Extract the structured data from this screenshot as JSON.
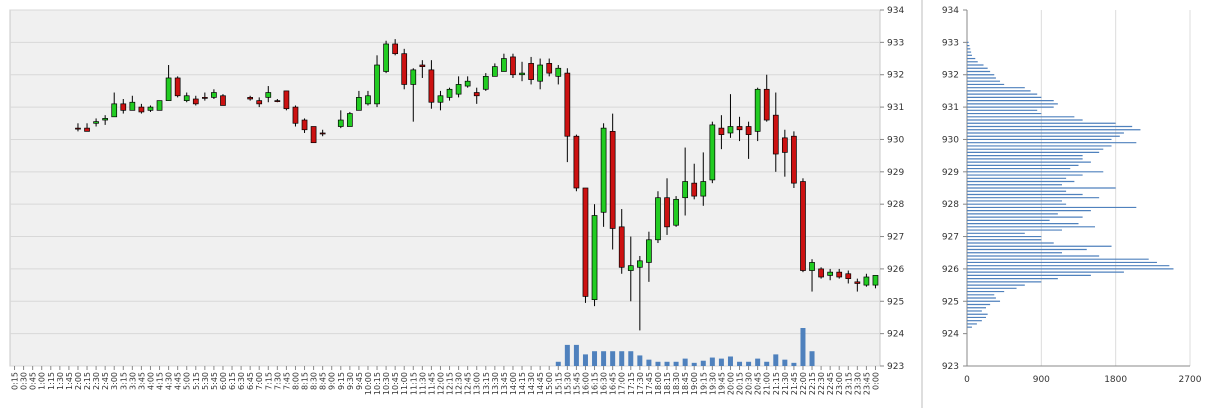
{
  "chart_data": [
    {
      "type": "candlestick",
      "title": "",
      "ylim": [
        923,
        934
      ],
      "y_ticks": [
        "923",
        "924",
        "925",
        "926",
        "927",
        "928",
        "929",
        "930",
        "931",
        "932",
        "933",
        "934"
      ],
      "grid": true,
      "x_labels": [
        "0:15",
        "0:30",
        "0:45",
        "1:00",
        "1:15",
        "1:30",
        "1:45",
        "2:00",
        "2:15",
        "2:30",
        "2:45",
        "3:00",
        "3:15",
        "3:30",
        "3:45",
        "4:00",
        "4:15",
        "4:30",
        "4:45",
        "5:00",
        "5:15",
        "5:30",
        "5:45",
        "6:00",
        "6:15",
        "6:30",
        "6:45",
        "7:00",
        "7:15",
        "7:30",
        "7:45",
        "8:00",
        "8:15",
        "8:30",
        "8:45",
        "9:00",
        "9:15",
        "9:30",
        "9:45",
        "10:00",
        "10:15",
        "10:30",
        "10:45",
        "11:00",
        "11:15",
        "11:30",
        "11:45",
        "12:00",
        "12:15",
        "12:30",
        "12:45",
        "13:00",
        "13:15",
        "13:30",
        "13:45",
        "14:00",
        "14:15",
        "14:30",
        "14:45",
        "15:00",
        "15:15",
        "15:30",
        "15:45",
        "16:00",
        "16:15",
        "16:30",
        "16:45",
        "17:00",
        "17:15",
        "17:30",
        "17:45",
        "18:00",
        "18:15",
        "18:30",
        "18:45",
        "19:00",
        "19:15",
        "19:30",
        "19:45",
        "20:00",
        "20:15",
        "20:30",
        "20:45",
        "21:00",
        "21:15",
        "21:30",
        "21:45",
        "22:00",
        "22:15",
        "22:30",
        "22:45",
        "23:00",
        "23:15",
        "23:30",
        "23:45",
        "0:00"
      ],
      "candles": [
        {
          "t": "2:00",
          "o": 930.35,
          "h": 930.5,
          "l": 930.25,
          "c": 930.35
        },
        {
          "t": "2:15",
          "o": 930.35,
          "h": 930.5,
          "l": 930.25,
          "c": 930.25
        },
        {
          "t": "2:30",
          "o": 930.5,
          "h": 930.65,
          "l": 930.4,
          "c": 930.55
        },
        {
          "t": "2:45",
          "o": 930.6,
          "h": 930.75,
          "l": 930.45,
          "c": 930.65
        },
        {
          "t": "3:00",
          "o": 930.7,
          "h": 931.45,
          "l": 930.7,
          "c": 931.1
        },
        {
          "t": "3:15",
          "o": 931.1,
          "h": 931.25,
          "l": 930.8,
          "c": 930.9
        },
        {
          "t": "3:30",
          "o": 930.9,
          "h": 931.35,
          "l": 930.9,
          "c": 931.15
        },
        {
          "t": "3:45",
          "o": 931.0,
          "h": 931.1,
          "l": 930.8,
          "c": 930.85
        },
        {
          "t": "4:00",
          "o": 930.9,
          "h": 931.05,
          "l": 930.85,
          "c": 931.0
        },
        {
          "t": "4:15",
          "o": 930.9,
          "h": 931.2,
          "l": 930.9,
          "c": 931.2
        },
        {
          "t": "4:30",
          "o": 931.2,
          "h": 932.3,
          "l": 931.2,
          "c": 931.9
        },
        {
          "t": "4:45",
          "o": 931.9,
          "h": 931.95,
          "l": 931.3,
          "c": 931.35
        },
        {
          "t": "5:00",
          "o": 931.2,
          "h": 931.45,
          "l": 931.15,
          "c": 931.35
        },
        {
          "t": "5:15",
          "o": 931.25,
          "h": 931.35,
          "l": 931.05,
          "c": 931.1
        },
        {
          "t": "5:30",
          "o": 931.3,
          "h": 931.45,
          "l": 931.2,
          "c": 931.3
        },
        {
          "t": "5:45",
          "o": 931.3,
          "h": 931.55,
          "l": 931.25,
          "c": 931.45
        },
        {
          "t": "6:00",
          "o": 931.35,
          "h": 931.4,
          "l": 931.05,
          "c": 931.05
        },
        {
          "t": "6:45",
          "o": 931.3,
          "h": 931.35,
          "l": 931.2,
          "c": 931.25
        },
        {
          "t": "7:00",
          "o": 931.2,
          "h": 931.3,
          "l": 931.0,
          "c": 931.1
        },
        {
          "t": "7:15",
          "o": 931.3,
          "h": 931.65,
          "l": 931.15,
          "c": 931.45
        },
        {
          "t": "7:30",
          "o": 931.2,
          "h": 931.25,
          "l": 931.15,
          "c": 931.2
        },
        {
          "t": "7:45",
          "o": 931.5,
          "h": 931.5,
          "l": 930.9,
          "c": 930.95
        },
        {
          "t": "8:00",
          "o": 931.0,
          "h": 931.05,
          "l": 930.4,
          "c": 930.5
        },
        {
          "t": "8:15",
          "o": 930.6,
          "h": 930.65,
          "l": 930.2,
          "c": 930.3
        },
        {
          "t": "8:30",
          "o": 930.4,
          "h": 930.4,
          "l": 929.9,
          "c": 929.9
        },
        {
          "t": "8:45",
          "o": 930.2,
          "h": 930.3,
          "l": 930.1,
          "c": 930.2
        },
        {
          "t": "9:15",
          "o": 930.4,
          "h": 930.9,
          "l": 930.35,
          "c": 930.6
        },
        {
          "t": "9:30",
          "o": 930.4,
          "h": 930.85,
          "l": 930.4,
          "c": 930.8
        },
        {
          "t": "9:45",
          "o": 930.9,
          "h": 931.5,
          "l": 930.9,
          "c": 931.3
        },
        {
          "t": "10:00",
          "o": 931.1,
          "h": 931.5,
          "l": 931.05,
          "c": 931.35
        },
        {
          "t": "10:15",
          "o": 931.1,
          "h": 932.6,
          "l": 931.0,
          "c": 932.3
        },
        {
          "t": "10:30",
          "o": 932.1,
          "h": 933.05,
          "l": 932.05,
          "c": 932.95
        },
        {
          "t": "10:45",
          "o": 932.95,
          "h": 933.1,
          "l": 932.6,
          "c": 932.65
        },
        {
          "t": "11:00",
          "o": 932.65,
          "h": 932.8,
          "l": 931.55,
          "c": 931.7
        },
        {
          "t": "11:15",
          "o": 931.7,
          "h": 932.2,
          "l": 930.55,
          "c": 932.15
        },
        {
          "t": "11:30",
          "o": 932.3,
          "h": 932.45,
          "l": 931.9,
          "c": 932.25
        },
        {
          "t": "11:45",
          "o": 932.15,
          "h": 932.45,
          "l": 930.95,
          "c": 931.15
        },
        {
          "t": "12:00",
          "o": 931.15,
          "h": 931.5,
          "l": 930.9,
          "c": 931.35
        },
        {
          "t": "12:15",
          "o": 931.3,
          "h": 931.6,
          "l": 931.2,
          "c": 931.55
        },
        {
          "t": "12:30",
          "o": 931.4,
          "h": 931.95,
          "l": 931.3,
          "c": 931.7
        },
        {
          "t": "12:45",
          "o": 931.65,
          "h": 931.95,
          "l": 931.6,
          "c": 931.8
        },
        {
          "t": "13:00",
          "o": 931.45,
          "h": 931.6,
          "l": 931.1,
          "c": 931.35
        },
        {
          "t": "13:15",
          "o": 931.55,
          "h": 932.05,
          "l": 931.5,
          "c": 931.95
        },
        {
          "t": "13:30",
          "o": 931.95,
          "h": 932.35,
          "l": 931.95,
          "c": 932.25
        },
        {
          "t": "13:45",
          "o": 932.1,
          "h": 932.65,
          "l": 932.1,
          "c": 932.5
        },
        {
          "t": "14:00",
          "o": 932.55,
          "h": 932.65,
          "l": 931.9,
          "c": 932.0
        },
        {
          "t": "14:15",
          "o": 932.0,
          "h": 932.4,
          "l": 931.8,
          "c": 932.05
        },
        {
          "t": "14:30",
          "o": 932.35,
          "h": 932.55,
          "l": 931.7,
          "c": 931.85
        },
        {
          "t": "14:45",
          "o": 931.8,
          "h": 932.5,
          "l": 931.55,
          "c": 932.3
        },
        {
          "t": "15:00",
          "o": 932.35,
          "h": 932.5,
          "l": 931.95,
          "c": 932.05
        },
        {
          "t": "15:15",
          "o": 931.95,
          "h": 932.3,
          "l": 931.7,
          "c": 932.2
        },
        {
          "t": "15:30",
          "o": 932.05,
          "h": 932.2,
          "l": 929.3,
          "c": 930.1
        },
        {
          "t": "15:45",
          "o": 930.1,
          "h": 930.15,
          "l": 928.4,
          "c": 928.5
        },
        {
          "t": "16:00",
          "o": 928.5,
          "h": 928.5,
          "l": 924.95,
          "c": 925.15
        },
        {
          "t": "16:15",
          "o": 925.05,
          "h": 928.0,
          "l": 924.85,
          "c": 927.65
        },
        {
          "t": "16:30",
          "o": 927.75,
          "h": 930.5,
          "l": 927.3,
          "c": 930.35
        },
        {
          "t": "16:45",
          "o": 930.25,
          "h": 930.8,
          "l": 926.6,
          "c": 927.25
        },
        {
          "t": "17:00",
          "o": 927.3,
          "h": 927.85,
          "l": 925.85,
          "c": 926.05
        },
        {
          "t": "17:15",
          "o": 925.95,
          "h": 927.0,
          "l": 925.0,
          "c": 926.1
        },
        {
          "t": "17:30",
          "o": 926.05,
          "h": 926.4,
          "l": 924.1,
          "c": 926.25
        },
        {
          "t": "17:45",
          "o": 926.2,
          "h": 927.15,
          "l": 925.6,
          "c": 926.9
        },
        {
          "t": "18:00",
          "o": 926.9,
          "h": 928.4,
          "l": 926.8,
          "c": 928.2
        },
        {
          "t": "18:15",
          "o": 928.2,
          "h": 928.8,
          "l": 927.05,
          "c": 927.3
        },
        {
          "t": "18:30",
          "o": 927.35,
          "h": 928.25,
          "l": 927.3,
          "c": 928.15
        },
        {
          "t": "18:45",
          "o": 928.2,
          "h": 929.75,
          "l": 927.65,
          "c": 928.7
        },
        {
          "t": "19:00",
          "o": 928.65,
          "h": 929.25,
          "l": 928.15,
          "c": 928.25
        },
        {
          "t": "19:15",
          "o": 928.25,
          "h": 929.6,
          "l": 927.95,
          "c": 928.7
        },
        {
          "t": "19:30",
          "o": 928.75,
          "h": 930.55,
          "l": 928.65,
          "c": 930.45
        },
        {
          "t": "19:45",
          "o": 930.35,
          "h": 930.75,
          "l": 929.7,
          "c": 930.15
        },
        {
          "t": "20:00",
          "o": 930.2,
          "h": 931.4,
          "l": 930.05,
          "c": 930.4
        },
        {
          "t": "20:15",
          "o": 930.4,
          "h": 930.7,
          "l": 929.95,
          "c": 930.3
        },
        {
          "t": "20:30",
          "o": 930.4,
          "h": 930.55,
          "l": 929.4,
          "c": 930.15
        },
        {
          "t": "20:45",
          "o": 930.25,
          "h": 931.6,
          "l": 929.95,
          "c": 931.55
        },
        {
          "t": "21:00",
          "o": 931.55,
          "h": 932.0,
          "l": 930.55,
          "c": 930.6
        },
        {
          "t": "21:15",
          "o": 930.75,
          "h": 931.45,
          "l": 929.0,
          "c": 929.55
        },
        {
          "t": "21:30",
          "o": 930.05,
          "h": 930.3,
          "l": 928.85,
          "c": 929.6
        },
        {
          "t": "21:45",
          "o": 930.1,
          "h": 930.25,
          "l": 928.5,
          "c": 928.65
        },
        {
          "t": "22:00",
          "o": 928.7,
          "h": 928.8,
          "l": 925.9,
          "c": 925.95
        },
        {
          "t": "22:15",
          "o": 925.95,
          "h": 926.3,
          "l": 925.3,
          "c": 926.2
        },
        {
          "t": "22:30",
          "o": 926.0,
          "h": 926.05,
          "l": 925.7,
          "c": 925.75
        },
        {
          "t": "22:45",
          "o": 925.8,
          "h": 926.0,
          "l": 925.65,
          "c": 925.9
        },
        {
          "t": "23:00",
          "o": 925.9,
          "h": 926.0,
          "l": 925.7,
          "c": 925.75
        },
        {
          "t": "23:15",
          "o": 925.85,
          "h": 925.95,
          "l": 925.55,
          "c": 925.7
        },
        {
          "t": "23:30",
          "o": 925.6,
          "h": 925.7,
          "l": 925.3,
          "c": 925.55
        },
        {
          "t": "23:45",
          "o": 925.5,
          "h": 925.85,
          "l": 925.45,
          "c": 925.75
        },
        {
          "t": "0:00",
          "o": 925.5,
          "h": 925.8,
          "l": 925.4,
          "c": 925.8
        }
      ],
      "volume": [
        {
          "t": "15:15",
          "v": 0.2
        },
        {
          "t": "15:30",
          "v": 1.0
        },
        {
          "t": "15:45",
          "v": 1.0
        },
        {
          "t": "16:00",
          "v": 0.55
        },
        {
          "t": "16:15",
          "v": 0.7
        },
        {
          "t": "16:30",
          "v": 0.7
        },
        {
          "t": "16:45",
          "v": 0.7
        },
        {
          "t": "17:00",
          "v": 0.7
        },
        {
          "t": "17:15",
          "v": 0.7
        },
        {
          "t": "17:30",
          "v": 0.5
        },
        {
          "t": "17:45",
          "v": 0.3
        },
        {
          "t": "18:00",
          "v": 0.2
        },
        {
          "t": "18:15",
          "v": 0.2
        },
        {
          "t": "18:30",
          "v": 0.2
        },
        {
          "t": "18:45",
          "v": 0.35
        },
        {
          "t": "19:00",
          "v": 0.15
        },
        {
          "t": "19:15",
          "v": 0.25
        },
        {
          "t": "19:30",
          "v": 0.4
        },
        {
          "t": "19:45",
          "v": 0.35
        },
        {
          "t": "20:00",
          "v": 0.45
        },
        {
          "t": "20:15",
          "v": 0.2
        },
        {
          "t": "20:30",
          "v": 0.2
        },
        {
          "t": "20:45",
          "v": 0.35
        },
        {
          "t": "21:00",
          "v": 0.2
        },
        {
          "t": "21:15",
          "v": 0.55
        },
        {
          "t": "21:30",
          "v": 0.3
        },
        {
          "t": "21:45",
          "v": 0.15
        },
        {
          "t": "22:00",
          "v": 1.8
        },
        {
          "t": "22:15",
          "v": 0.7
        }
      ],
      "colors": {
        "up": "#22cc22",
        "down": "#cc1111",
        "volume": "#4f81bd",
        "plot_bg": "#f0f0f0",
        "grid": "#d8d8d8"
      }
    },
    {
      "type": "bar",
      "orientation": "horizontal",
      "title": "",
      "ylim": [
        923,
        934
      ],
      "y_ticks": [
        "923",
        "924",
        "925",
        "926",
        "927",
        "928",
        "929",
        "930",
        "931",
        "932",
        "933",
        "934"
      ],
      "x_ticks": [
        "0",
        "900",
        "1800",
        "2700"
      ],
      "xlim": [
        0,
        2700
      ],
      "price_levels": [
        924.2,
        924.3,
        924.4,
        924.5,
        924.6,
        924.7,
        924.8,
        924.9,
        925.0,
        925.1,
        925.2,
        925.3,
        925.4,
        925.5,
        925.6,
        925.7,
        925.8,
        925.9,
        926.0,
        926.1,
        926.2,
        926.3,
        926.4,
        926.5,
        926.6,
        926.7,
        926.8,
        926.9,
        927.0,
        927.1,
        927.2,
        927.3,
        927.4,
        927.5,
        927.6,
        927.7,
        927.8,
        927.9,
        928.0,
        928.1,
        928.2,
        928.3,
        928.4,
        928.5,
        928.6,
        928.7,
        928.8,
        928.9,
        929.0,
        929.1,
        929.2,
        929.3,
        929.4,
        929.5,
        929.6,
        929.7,
        929.8,
        929.9,
        930.0,
        930.1,
        930.2,
        930.3,
        930.4,
        930.5,
        930.6,
        930.7,
        930.8,
        930.9,
        931.0,
        931.1,
        931.2,
        931.3,
        931.4,
        931.5,
        931.6,
        931.7,
        931.8,
        931.9,
        932.0,
        932.1,
        932.2,
        932.3,
        932.4,
        932.5,
        932.6,
        932.7,
        932.8,
        932.9,
        933.0
      ],
      "values": [
        60,
        120,
        180,
        230,
        250,
        180,
        230,
        280,
        400,
        350,
        330,
        450,
        600,
        700,
        900,
        1100,
        1500,
        1900,
        2500,
        2450,
        2300,
        2200,
        1600,
        1150,
        1450,
        1750,
        1050,
        900,
        900,
        700,
        1150,
        1550,
        1350,
        1000,
        1400,
        1100,
        1500,
        2050,
        1200,
        1150,
        1600,
        1400,
        1200,
        1800,
        1150,
        1300,
        1200,
        1400,
        1650,
        1250,
        1350,
        1500,
        1400,
        1400,
        1600,
        1650,
        1750,
        2050,
        1750,
        1850,
        1900,
        2100,
        2000,
        1800,
        1400,
        1300,
        900,
        850,
        1050,
        1100,
        1050,
        900,
        850,
        770,
        700,
        450,
        400,
        350,
        330,
        280,
        250,
        200,
        130,
        100,
        60,
        50,
        40,
        30,
        20
      ],
      "color": "#4f81bd"
    }
  ]
}
